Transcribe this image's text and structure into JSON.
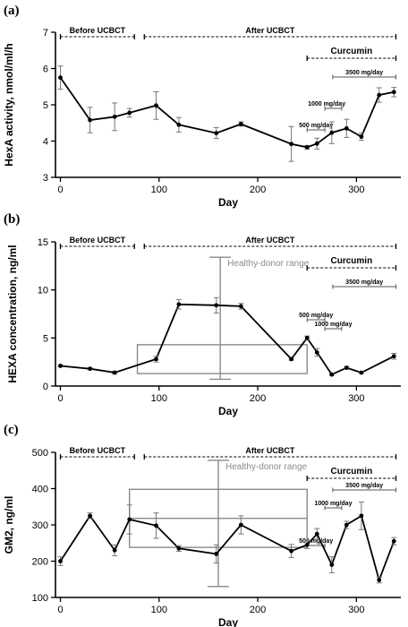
{
  "chart_data": [
    {
      "panel": "(a)",
      "type": "line",
      "xlabel": "Day",
      "ylabel": "HexA activity, nmol/ml/h",
      "xlim": [
        -5,
        345
      ],
      "ylim": [
        3,
        7
      ],
      "xticks": [
        0,
        100,
        200,
        300
      ],
      "yticks": [
        3,
        4,
        5,
        6,
        7
      ],
      "x": [
        0,
        30,
        55,
        70,
        97,
        120,
        158,
        183,
        234,
        250,
        260,
        275,
        290,
        305,
        323,
        338
      ],
      "values": [
        5.75,
        4.58,
        4.67,
        4.78,
        4.98,
        4.45,
        4.22,
        4.47,
        3.92,
        3.83,
        3.93,
        4.23,
        4.35,
        4.12,
        5.27,
        5.35
      ],
      "errors": [
        0.32,
        0.35,
        0.38,
        0.12,
        0.38,
        0.2,
        0.15,
        0.06,
        0.48,
        0.05,
        0.15,
        0.3,
        0.25,
        0.1,
        0.2,
        0.13
      ],
      "periods": {
        "before": {
          "label": "Before UCBCT",
          "range": [
            0,
            75
          ]
        },
        "after": {
          "label": "After UCBCT",
          "range": [
            85,
            340
          ]
        }
      },
      "curcumin": {
        "label": "Curcumin",
        "range": [
          250,
          340
        ]
      },
      "doses": [
        {
          "label": "500 mg/day",
          "range": [
            250,
            268
          ]
        },
        {
          "label": "1000 mg/day",
          "range": [
            268,
            285
          ]
        },
        {
          "label": "3500 mg/day",
          "range": [
            276,
            340
          ]
        }
      ]
    },
    {
      "panel": "(b)",
      "type": "line",
      "xlabel": "Day",
      "ylabel": "HEXA concentration, ng/ml",
      "xlim": [
        -5,
        345
      ],
      "ylim": [
        0,
        15
      ],
      "xticks": [
        0,
        100,
        200,
        300
      ],
      "yticks": [
        0,
        5,
        10,
        15
      ],
      "x": [
        0,
        30,
        55,
        97,
        120,
        158,
        183,
        234,
        250,
        260,
        275,
        290,
        305,
        338
      ],
      "values": [
        2.1,
        1.8,
        1.4,
        2.8,
        8.5,
        8.4,
        8.3,
        2.8,
        5.0,
        3.5,
        1.2,
        1.9,
        1.4,
        3.1
      ],
      "errors": [
        0.1,
        0.1,
        0.15,
        0.3,
        0.5,
        0.8,
        0.3,
        0.1,
        0.2,
        0.4,
        0.1,
        0.15,
        0.1,
        0.3
      ],
      "periods": {
        "before": {
          "label": "Before UCBCT",
          "range": [
            0,
            75
          ]
        },
        "after": {
          "label": "After UCBCT",
          "range": [
            85,
            340
          ]
        }
      },
      "curcumin": {
        "label": "Curcumin",
        "range": [
          250,
          340
        ]
      },
      "doses": [
        {
          "label": "500 mg/day",
          "range": [
            250,
            268
          ]
        },
        {
          "label": "1000 mg/day",
          "range": [
            268,
            285
          ]
        },
        {
          "label": "3500 mg/day",
          "range": [
            276,
            340
          ]
        }
      ],
      "reference": {
        "label": "Healthy-donor range",
        "box_low": 1.3,
        "box_high": 4.3,
        "whisker_low": 0.7,
        "whisker_high": 13.4,
        "x_range": [
          78,
          250
        ],
        "x_center": 162
      }
    },
    {
      "panel": "(c)",
      "type": "line",
      "xlabel": "Day",
      "ylabel": "GM2, ng/ml",
      "xlim": [
        -5,
        345
      ],
      "ylim": [
        100,
        500
      ],
      "xticks": [
        0,
        100,
        200,
        300
      ],
      "yticks": [
        100,
        200,
        300,
        400,
        500
      ],
      "x": [
        0,
        30,
        55,
        70,
        97,
        120,
        158,
        183,
        234,
        250,
        260,
        275,
        290,
        305,
        323,
        338
      ],
      "values": [
        200,
        325,
        230,
        315,
        298,
        235,
        220,
        300,
        228,
        245,
        275,
        190,
        300,
        325,
        148,
        255
      ],
      "errors": [
        12,
        8,
        15,
        40,
        35,
        8,
        25,
        25,
        18,
        10,
        15,
        22,
        10,
        38,
        8,
        10
      ],
      "periods": {
        "before": {
          "label": "Before UCBCT",
          "range": [
            0,
            75
          ]
        },
        "after": {
          "label": "After UCBCT",
          "range": [
            85,
            340
          ]
        }
      },
      "curcumin": {
        "label": "Curcumin",
        "range": [
          250,
          340
        ]
      },
      "doses": [
        {
          "label": "1000 mg/day",
          "range": [
            268,
            285
          ]
        },
        {
          "label": "3500 mg/day",
          "range": [
            276,
            340
          ]
        },
        {
          "label": "500 mg/day",
          "range": [
            250,
            268
          ]
        }
      ],
      "reference": {
        "label": "Healthy-donor range",
        "box_low": 238,
        "box_high": 398,
        "median": 318,
        "whisker_low": 130,
        "whisker_high": 478,
        "x_range": [
          70,
          250
        ],
        "x_center": 160
      }
    }
  ]
}
